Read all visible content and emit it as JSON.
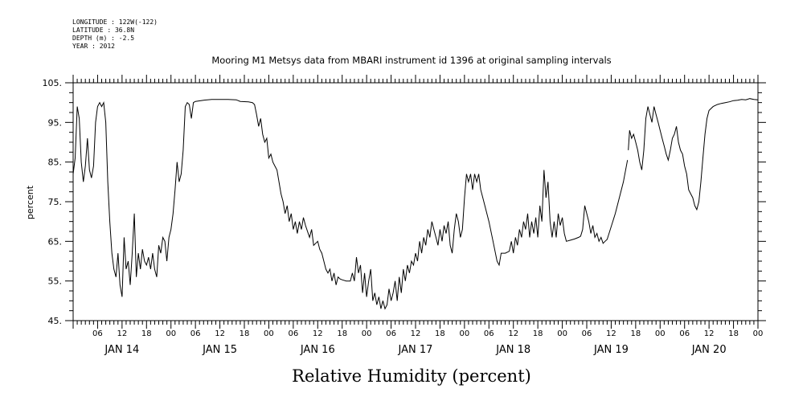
{
  "header": {
    "lines": [
      "LONGITUDE : 122W(-122)",
      "LATITUDE : 36.8N",
      "DEPTH (m) : -2.5",
      "YEAR : 2012"
    ]
  },
  "chart_data": {
    "type": "line",
    "title": "Mooring M1 Metsys data from MBARI instrument id 1396 at original sampling intervals",
    "xlabel": "Relative Humidity (percent)",
    "ylabel": "percent",
    "ylim": [
      45,
      105
    ],
    "yticks": [
      "45.",
      "55.",
      "65.",
      "75.",
      "85.",
      "95.",
      "105."
    ],
    "xlim_hours": [
      0,
      168
    ],
    "hour_labels": [
      "06",
      "12",
      "18",
      "00",
      "06",
      "12",
      "18",
      "00",
      "06",
      "12",
      "18",
      "00",
      "06",
      "12",
      "18",
      "00",
      "06",
      "12",
      "18",
      "00",
      "06",
      "12",
      "18",
      "00",
      "06",
      "12",
      "18",
      "00"
    ],
    "day_labels": [
      "JAN 14",
      "JAN 15",
      "JAN 16",
      "JAN 17",
      "JAN 18",
      "JAN 19",
      "JAN 20"
    ],
    "grid": false,
    "line_color": "#000000",
    "series": [
      {
        "segments": [
          [
            [
              0,
              82
            ],
            [
              0.5,
              86
            ],
            [
              1,
              99
            ],
            [
              1.5,
              96
            ],
            [
              2,
              85
            ],
            [
              2.5,
              80
            ],
            [
              3,
              84
            ],
            [
              3.5,
              91
            ],
            [
              4,
              83
            ],
            [
              4.5,
              81
            ],
            [
              5,
              84
            ],
            [
              5.5,
              95
            ],
            [
              6,
              99
            ],
            [
              6.5,
              100
            ],
            [
              7,
              99
            ],
            [
              7.5,
              100
            ],
            [
              8,
              95
            ],
            [
              8.5,
              80
            ],
            [
              9,
              70
            ],
            [
              9.5,
              62
            ],
            [
              10,
              58
            ],
            [
              10.5,
              56
            ],
            [
              11,
              62
            ],
            [
              11.5,
              54
            ],
            [
              12,
              51
            ],
            [
              12.5,
              66
            ],
            [
              13,
              58
            ],
            [
              13.5,
              60
            ],
            [
              14,
              54
            ],
            [
              14.5,
              62
            ],
            [
              15,
              72
            ],
            [
              15.5,
              56
            ],
            [
              16,
              62
            ],
            [
              16.5,
              58
            ],
            [
              17,
              63
            ],
            [
              17.5,
              60
            ],
            [
              18,
              59
            ],
            [
              18.5,
              61
            ],
            [
              19,
              58
            ],
            [
              19.5,
              62
            ],
            [
              20,
              58
            ],
            [
              20.5,
              56
            ],
            [
              21,
              64
            ],
            [
              21.5,
              62
            ],
            [
              22,
              66
            ],
            [
              22.5,
              65
            ],
            [
              23,
              60
            ],
            [
              23.5,
              66
            ],
            [
              24,
              68
            ],
            [
              24.5,
              72
            ],
            [
              25,
              78
            ],
            [
              25.5,
              85
            ],
            [
              26,
              80
            ],
            [
              26.5,
              82
            ],
            [
              27,
              88
            ],
            [
              27.5,
              99
            ],
            [
              28,
              100
            ],
            [
              28.5,
              99.5
            ],
            [
              29,
              96
            ],
            [
              29.5,
              100
            ],
            [
              30,
              100.3
            ],
            [
              32,
              100.6
            ],
            [
              34,
              100.8
            ],
            [
              36,
              100.8
            ],
            [
              38,
              100.8
            ],
            [
              40,
              100.7
            ],
            [
              41,
              100.3
            ],
            [
              43,
              100.2
            ],
            [
              44,
              100
            ],
            [
              44.5,
              99.5
            ],
            [
              45,
              97
            ],
            [
              45.5,
              94
            ],
            [
              46,
              96
            ],
            [
              46.5,
              92
            ],
            [
              47,
              90
            ],
            [
              47.5,
              91
            ],
            [
              48,
              86
            ],
            [
              48.5,
              87
            ],
            [
              49,
              85
            ],
            [
              49.5,
              84
            ],
            [
              50,
              83
            ],
            [
              51,
              77
            ],
            [
              51.5,
              75
            ],
            [
              52,
              72
            ],
            [
              52.5,
              74
            ],
            [
              53,
              70
            ],
            [
              53.5,
              72
            ],
            [
              54,
              68
            ],
            [
              54.5,
              70
            ],
            [
              55,
              67
            ],
            [
              55.5,
              70
            ],
            [
              56,
              68
            ],
            [
              56.5,
              71
            ],
            [
              57,
              69
            ],
            [
              58,
              66
            ],
            [
              58.5,
              68
            ],
            [
              59,
              64
            ],
            [
              60,
              65
            ],
            [
              60.5,
              63
            ],
            [
              61,
              62
            ],
            [
              61.5,
              60
            ],
            [
              62,
              58
            ],
            [
              62.5,
              57
            ],
            [
              63,
              58
            ],
            [
              63.5,
              55
            ],
            [
              64,
              57
            ],
            [
              64.5,
              54
            ],
            [
              65,
              56
            ],
            [
              65.5,
              55.5
            ],
            [
              66,
              55.3
            ],
            [
              67,
              55
            ],
            [
              68,
              55
            ],
            [
              68.5,
              57
            ],
            [
              69,
              55
            ],
            [
              69.5,
              61
            ],
            [
              70,
              57
            ],
            [
              70.5,
              59
            ],
            [
              71,
              52
            ],
            [
              71.5,
              57
            ],
            [
              72,
              51
            ],
            [
              72.5,
              55
            ],
            [
              73,
              58
            ],
            [
              73.5,
              50
            ],
            [
              74,
              52
            ],
            [
              74.5,
              49
            ],
            [
              75,
              51
            ],
            [
              75.5,
              48
            ],
            [
              76,
              50
            ],
            [
              76.5,
              48
            ],
            [
              77,
              49
            ],
            [
              77.5,
              53
            ],
            [
              78,
              50
            ],
            [
              78.5,
              52
            ],
            [
              79,
              55
            ],
            [
              79.5,
              50
            ],
            [
              80,
              56
            ],
            [
              80.5,
              52
            ],
            [
              81,
              58
            ],
            [
              81.5,
              55
            ],
            [
              82,
              59
            ],
            [
              82.5,
              57
            ],
            [
              83,
              60
            ],
            [
              83.5,
              59
            ],
            [
              84,
              62
            ],
            [
              84.5,
              60
            ],
            [
              85,
              65
            ],
            [
              85.5,
              62
            ],
            [
              86,
              66
            ],
            [
              86.5,
              64
            ],
            [
              87,
              68
            ],
            [
              87.5,
              66
            ],
            [
              88,
              70
            ],
            [
              88.5,
              68
            ],
            [
              89,
              66
            ],
            [
              89.5,
              64
            ],
            [
              90,
              68
            ],
            [
              90.5,
              65
            ],
            [
              91,
              69
            ],
            [
              91.5,
              67
            ],
            [
              92,
              70
            ],
            [
              92.5,
              64
            ],
            [
              93,
              62
            ],
            [
              93.5,
              68
            ],
            [
              94,
              72
            ],
            [
              94.5,
              70
            ],
            [
              95,
              66
            ],
            [
              95.5,
              68
            ],
            [
              96,
              76
            ],
            [
              96.5,
              82
            ],
            [
              97,
              80
            ],
            [
              97.5,
              82
            ],
            [
              98,
              78
            ],
            [
              98.5,
              82
            ],
            [
              99,
              80
            ],
            [
              99.5,
              82
            ],
            [
              100,
              78
            ],
            [
              100.5,
              76
            ],
            [
              102,
              70
            ],
            [
              103,
              65
            ],
            [
              104,
              60
            ],
            [
              104.5,
              59
            ],
            [
              105,
              62
            ],
            [
              106,
              62
            ],
            [
              107,
              62.5
            ],
            [
              107.5,
              65
            ],
            [
              108,
              62
            ],
            [
              108.5,
              66
            ],
            [
              109,
              64
            ],
            [
              109.5,
              68
            ],
            [
              110,
              66
            ],
            [
              110.5,
              70
            ],
            [
              111,
              68
            ],
            [
              111.5,
              72
            ],
            [
              112,
              66
            ],
            [
              112.5,
              70
            ],
            [
              113,
              67
            ],
            [
              113.5,
              71
            ],
            [
              114,
              66
            ],
            [
              114.5,
              74
            ],
            [
              115,
              70
            ],
            [
              115.5,
              83
            ],
            [
              116,
              76
            ],
            [
              116.5,
              80
            ],
            [
              117,
              70
            ],
            [
              117.5,
              66
            ],
            [
              118,
              70
            ],
            [
              118.5,
              66
            ],
            [
              119,
              72
            ],
            [
              119.5,
              69
            ],
            [
              120,
              71
            ],
            [
              120.5,
              67
            ],
            [
              121,
              65
            ],
            [
              122,
              65.3
            ],
            [
              123,
              65.6
            ],
            [
              124,
              66
            ],
            [
              124.5,
              66.3
            ],
            [
              125,
              68
            ],
            [
              125.5,
              74
            ],
            [
              126,
              72
            ],
            [
              126.5,
              70
            ],
            [
              127,
              67
            ],
            [
              127.5,
              69
            ],
            [
              128,
              66
            ],
            [
              128.5,
              67
            ],
            [
              129,
              65
            ],
            [
              129.5,
              66
            ],
            [
              130,
              64.5
            ],
            [
              130.5,
              65
            ],
            [
              131,
              65.5
            ],
            [
              133,
              72
            ],
            [
              135,
              80
            ],
            [
              136,
              85.5
            ]
          ],
          [
            [
              136.2,
              88
            ],
            [
              136.5,
              93
            ],
            [
              137,
              91
            ],
            [
              137.5,
              92
            ],
            [
              138,
              90
            ],
            [
              138.5,
              88
            ],
            [
              139,
              85
            ],
            [
              139.5,
              83
            ],
            [
              140,
              88
            ],
            [
              140.5,
              96
            ],
            [
              141,
              99
            ],
            [
              141.5,
              97
            ],
            [
              142,
              95
            ],
            [
              142.5,
              99
            ],
            [
              143,
              97
            ],
            [
              143.5,
              95
            ],
            [
              144,
              93
            ],
            [
              144.5,
              91
            ],
            [
              145,
              89
            ],
            [
              145.5,
              87
            ],
            [
              146,
              85.5
            ],
            [
              146.5,
              88
            ],
            [
              147,
              91
            ],
            [
              147.5,
              92
            ],
            [
              148,
              94
            ],
            [
              148.5,
              90
            ],
            [
              149,
              88
            ],
            [
              149.5,
              87
            ],
            [
              150,
              84
            ],
            [
              150.5,
              82
            ],
            [
              151,
              78
            ],
            [
              151.5,
              77
            ],
            [
              152,
              76
            ],
            [
              152.5,
              74
            ],
            [
              153,
              73
            ],
            [
              153.5,
              75
            ],
            [
              154,
              80
            ],
            [
              154.5,
              86
            ],
            [
              155,
              92
            ],
            [
              155.5,
              96
            ],
            [
              156,
              98
            ],
            [
              157,
              99
            ],
            [
              158,
              99.5
            ],
            [
              159,
              99.8
            ],
            [
              160,
              100
            ],
            [
              161,
              100.2
            ],
            [
              162,
              100.5
            ],
            [
              163,
              100.6
            ],
            [
              164,
              100.8
            ],
            [
              165,
              100.7
            ],
            [
              166,
              101
            ],
            [
              167,
              100.8
            ],
            [
              168,
              100.7
            ]
          ]
        ]
      }
    ]
  }
}
